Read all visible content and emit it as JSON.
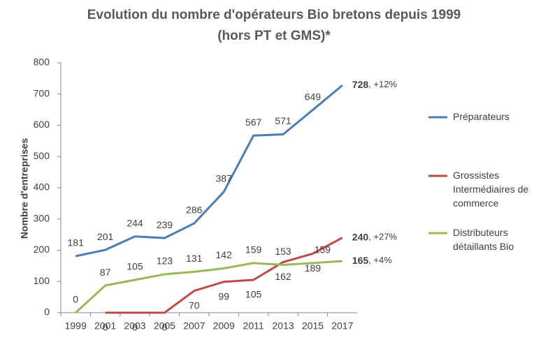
{
  "chart_data": {
    "type": "line",
    "title": "Evolution du nombre d'opérateurs Bio bretons depuis 1999",
    "subtitle": "(hors PT et GMS)*",
    "y_label": "Nombre d'entreprises",
    "categories": [
      "1999",
      "2001",
      "2003",
      "2005",
      "2007",
      "2009",
      "2011",
      "2013",
      "2015",
      "2017"
    ],
    "series": [
      {
        "name": "Préparateurs",
        "color": "#4a7ebb",
        "values": [
          181,
          201,
          244,
          239,
          286,
          387,
          567,
          571,
          649,
          728
        ],
        "end_note": ", +12%"
      },
      {
        "name": "Grossistes Intermédiaires de commerce",
        "color": "#be4b48",
        "values": [
          null,
          0,
          0,
          0,
          70,
          99,
          105,
          162,
          189,
          240
        ],
        "end_note": ", +27%"
      },
      {
        "name": "Distributeurs détaillants Bio",
        "color": "#98b954",
        "values": [
          0,
          87,
          105,
          123,
          131,
          142,
          159,
          153,
          159,
          165
        ],
        "end_note": ", +4%"
      }
    ],
    "ylim": [
      0,
      800
    ],
    "yticks": [
      0,
      100,
      200,
      300,
      400,
      500,
      600,
      700,
      800
    ],
    "grid": false,
    "legend": "right"
  }
}
